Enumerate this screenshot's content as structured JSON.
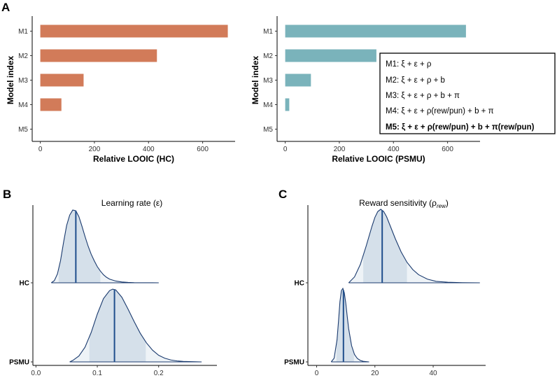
{
  "panels": {
    "a": "A",
    "b": "B",
    "c": "C"
  },
  "legend": [
    {
      "text": "M1: ξ + ε + ρ",
      "bold": false
    },
    {
      "text": "M2: ξ + ε + ρ + b",
      "bold": false
    },
    {
      "text": "M3: ξ + ε + ρ + b + π",
      "bold": false
    },
    {
      "text": "M4: ξ + ε + ρ(rew/pun) + b + π",
      "bold": false
    },
    {
      "text": "M5: ξ + ε + ρ(rew/pun) + b + π(rew/pun)",
      "bold": true
    }
  ],
  "chart_data": [
    {
      "id": "hc-looic",
      "type": "bar",
      "orientation": "horizontal",
      "categories": [
        "M1",
        "M2",
        "M3",
        "M4",
        "M5"
      ],
      "values": [
        693,
        431,
        160,
        78,
        0
      ],
      "xlabel": "Relative LOOIC (HC)",
      "ylabel": "Model index",
      "xlim": [
        -30,
        720
      ],
      "xticks": [
        0,
        200,
        400,
        600
      ],
      "color": "#d27b59"
    },
    {
      "id": "psmu-looic",
      "type": "bar",
      "orientation": "horizontal",
      "categories": [
        "M1",
        "M2",
        "M3",
        "M4",
        "M5"
      ],
      "values": [
        668,
        337,
        95,
        15,
        0
      ],
      "xlabel": "Relative LOOIC (PSMU)",
      "ylabel": "Model index",
      "xlim": [
        -30,
        720
      ],
      "xticks": [
        0,
        200,
        400,
        600
      ],
      "color": "#7ab3bb"
    },
    {
      "id": "learning-rate",
      "type": "area",
      "title": "Learning rate (ε)",
      "xlim": [
        -0.005,
        0.295
      ],
      "xticks": [
        0.0,
        0.1,
        0.2
      ],
      "tick_labels": [
        "0.0",
        "0.1",
        "0.2"
      ],
      "series": [
        {
          "name": "HC",
          "x": [
            0.025,
            0.03,
            0.035,
            0.04,
            0.045,
            0.05,
            0.055,
            0.06,
            0.065,
            0.07,
            0.075,
            0.08,
            0.085,
            0.09,
            0.095,
            0.1,
            0.105,
            0.11,
            0.115,
            0.12,
            0.13,
            0.14,
            0.15,
            0.16,
            0.17,
            0.18,
            0.19,
            0.2
          ],
          "y": [
            0.0,
            0.03,
            0.12,
            0.3,
            0.55,
            0.78,
            0.92,
            0.99,
            0.98,
            0.9,
            0.77,
            0.63,
            0.5,
            0.39,
            0.3,
            0.22,
            0.16,
            0.11,
            0.075,
            0.05,
            0.024,
            0.011,
            0.005,
            0.002,
            0.001,
            0.0005,
            0.0002,
            0.0
          ],
          "median": 0.065,
          "interval": [
            0.037,
            0.105
          ]
        },
        {
          "name": "PSMU",
          "x": [
            0.055,
            0.06,
            0.07,
            0.08,
            0.09,
            0.1,
            0.11,
            0.12,
            0.125,
            0.13,
            0.14,
            0.15,
            0.16,
            0.17,
            0.18,
            0.19,
            0.2,
            0.21,
            0.22,
            0.23,
            0.24,
            0.25,
            0.26,
            0.27
          ],
          "y": [
            0.0,
            0.02,
            0.08,
            0.2,
            0.4,
            0.65,
            0.86,
            0.97,
            0.99,
            0.98,
            0.88,
            0.72,
            0.55,
            0.39,
            0.26,
            0.16,
            0.09,
            0.05,
            0.026,
            0.013,
            0.007,
            0.004,
            0.002,
            0.0
          ],
          "median": 0.128,
          "interval": [
            0.087,
            0.179
          ]
        }
      ],
      "categories": [
        "HC",
        "PSMU"
      ],
      "fill": "#d5e0ea",
      "line": "#1a3a6e"
    },
    {
      "id": "reward-sensitivity",
      "type": "area",
      "title": "Reward sensitivity (ρ",
      "title_sub": "rew",
      "title_end": ")",
      "xlim": [
        -3,
        58
      ],
      "xticks": [
        0,
        20,
        40
      ],
      "tick_labels": [
        "0",
        "20",
        "40"
      ],
      "series": [
        {
          "name": "HC",
          "x": [
            11,
            13,
            15,
            17,
            19,
            20,
            21,
            22,
            23,
            24,
            25,
            27,
            29,
            31,
            33,
            35,
            38,
            41,
            45,
            50,
            56
          ],
          "y": [
            0.0,
            0.08,
            0.25,
            0.5,
            0.77,
            0.89,
            0.97,
            1.0,
            0.97,
            0.9,
            0.8,
            0.6,
            0.42,
            0.28,
            0.18,
            0.11,
            0.05,
            0.02,
            0.008,
            0.002,
            0.0
          ],
          "median": 22.5,
          "interval": [
            16,
            31
          ]
        },
        {
          "name": "PSMU",
          "x": [
            5,
            6,
            7,
            7.5,
            8,
            8.5,
            9,
            9.5,
            10,
            10.5,
            11,
            12,
            13,
            14,
            15,
            16,
            18
          ],
          "y": [
            0.0,
            0.05,
            0.3,
            0.55,
            0.82,
            0.97,
            1.0,
            0.94,
            0.8,
            0.62,
            0.45,
            0.22,
            0.1,
            0.045,
            0.02,
            0.008,
            0.0
          ],
          "median": 9.2,
          "interval": [
            6.8,
            12.8
          ]
        }
      ],
      "categories": [
        "HC",
        "PSMU"
      ],
      "fill": "#d5e0ea",
      "line": "#1a3a6e"
    }
  ]
}
